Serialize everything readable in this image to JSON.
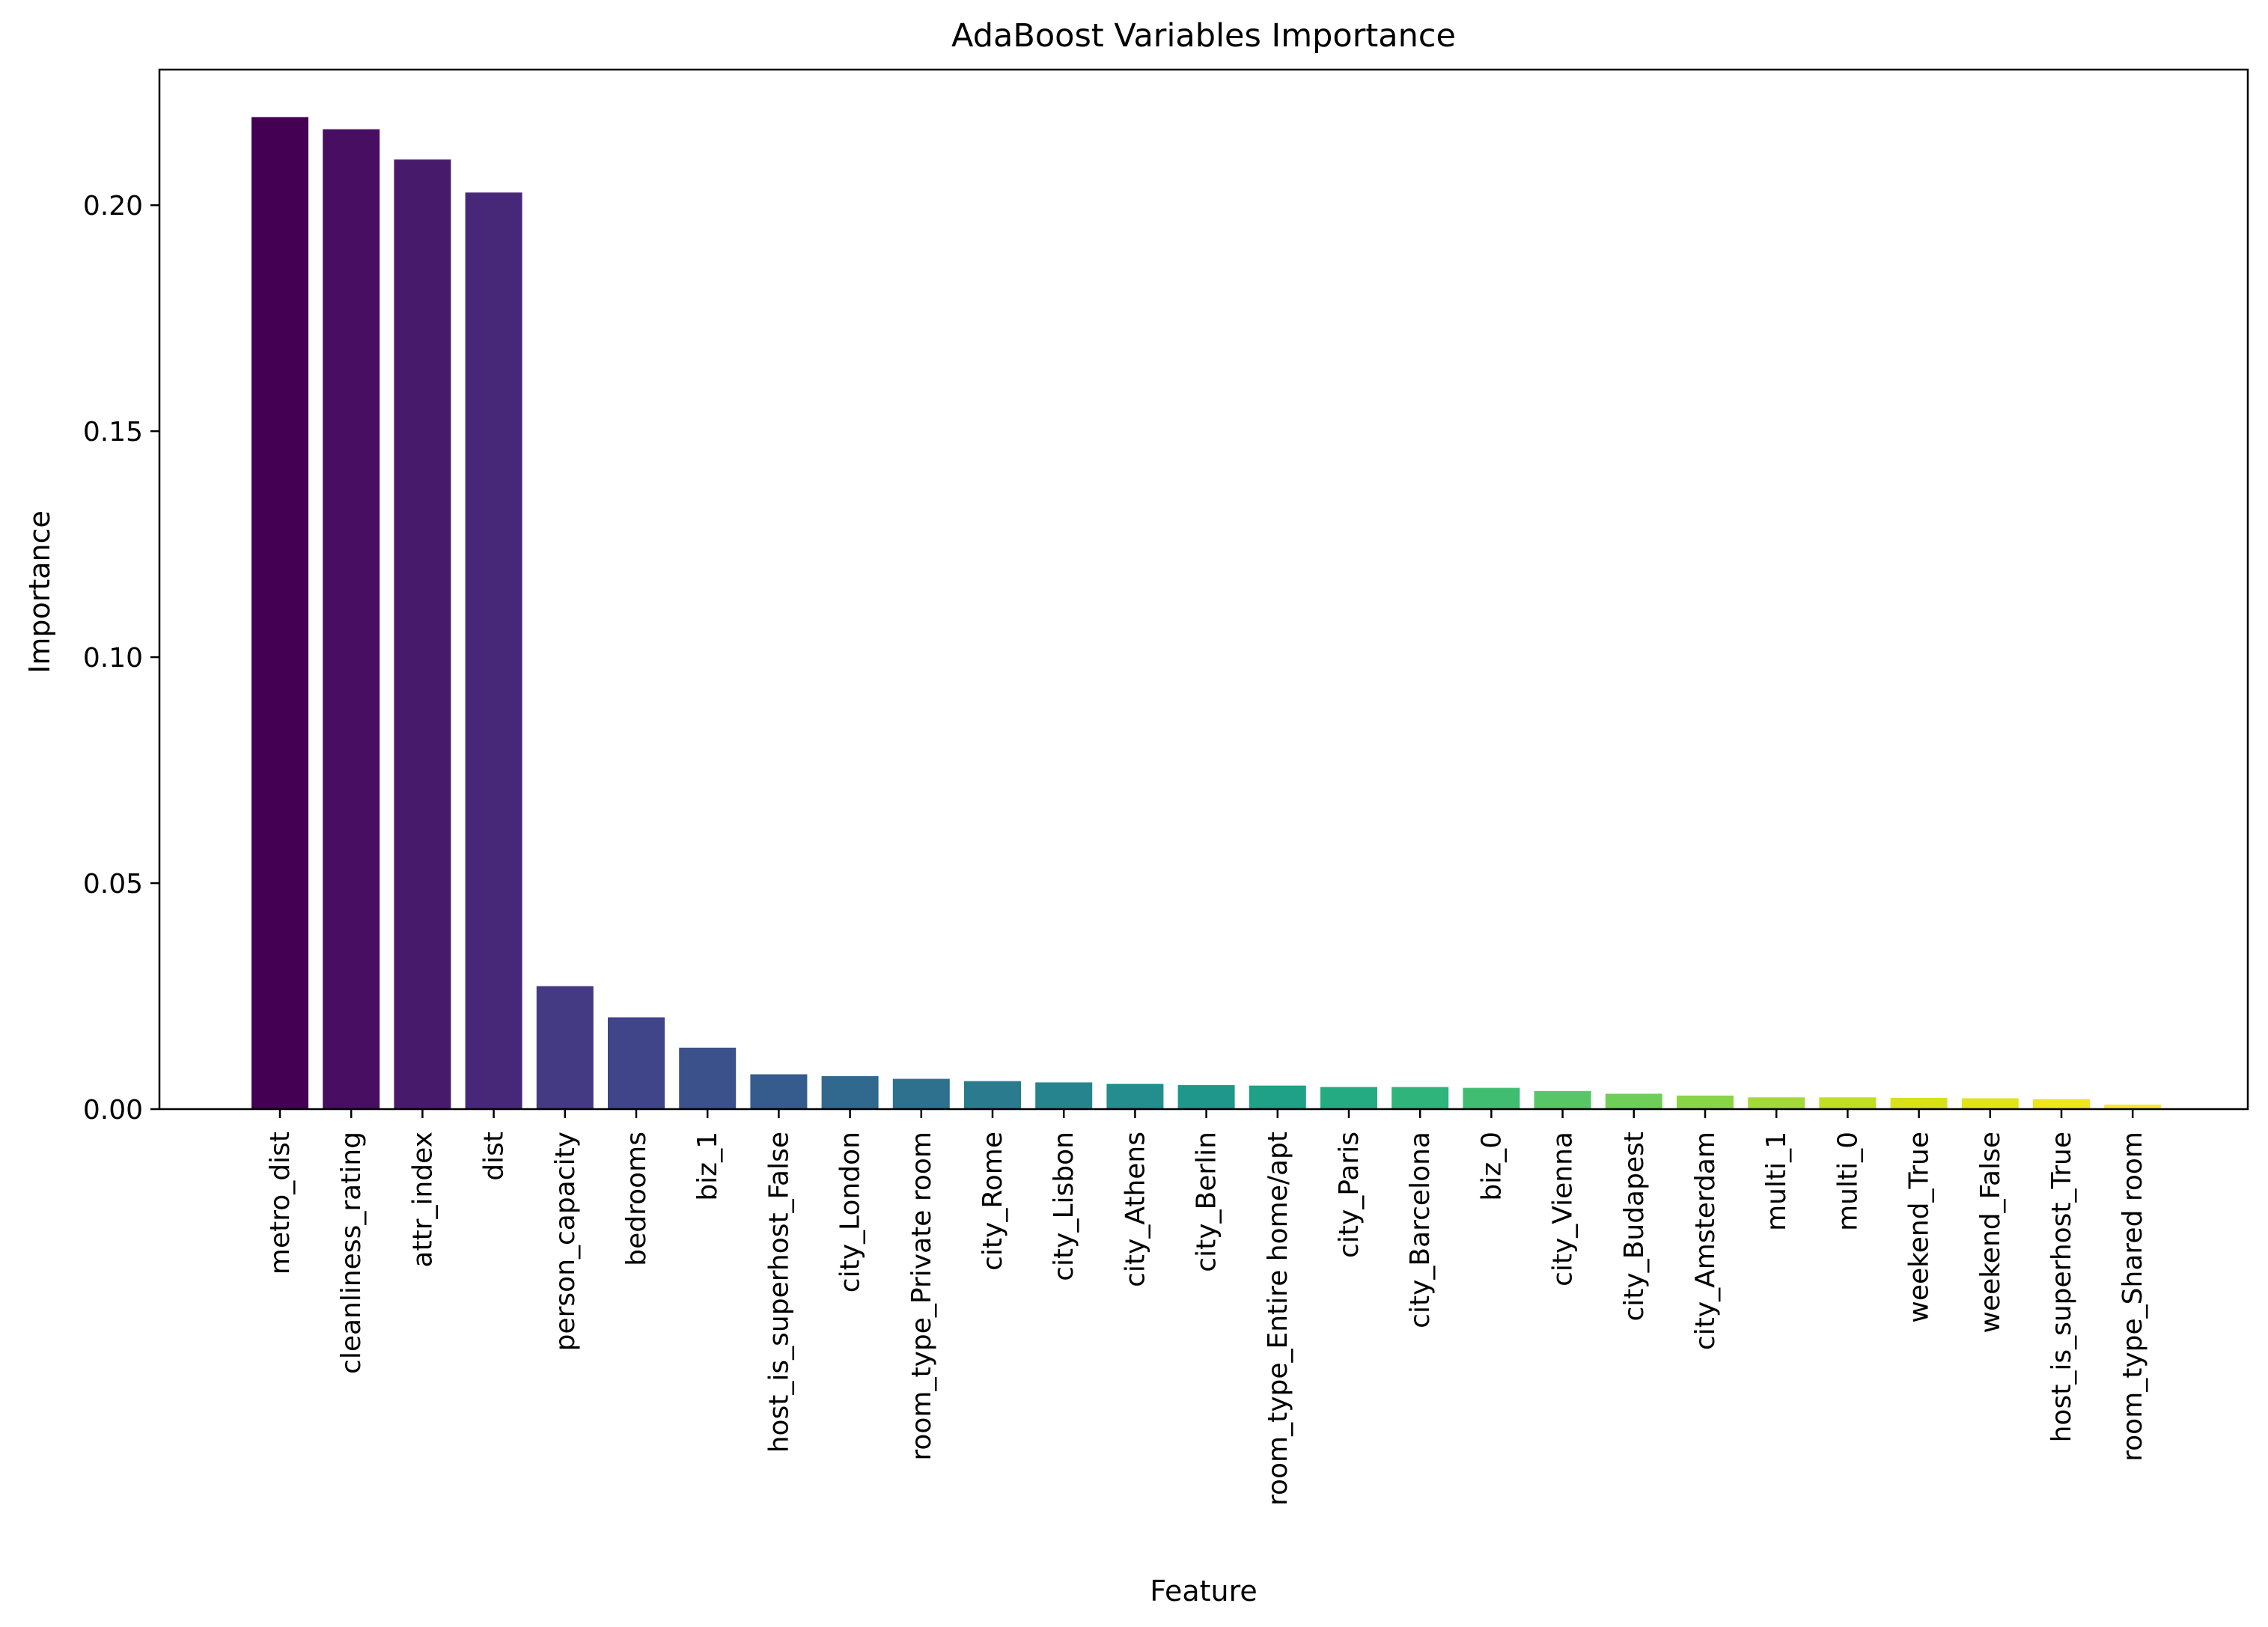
{
  "chart_data": {
    "type": "bar",
    "title": "AdaBoost Variables Importance",
    "xlabel": "Feature",
    "ylabel": "Importance",
    "ylim": [
      0,
      0.23
    ],
    "yticks": [
      "0.00",
      "0.05",
      "0.10",
      "0.15",
      "0.20"
    ],
    "grid": false,
    "legend": "none",
    "colormap": "viridis",
    "categories": [
      "metro_dist",
      "cleanliness_rating",
      "attr_index",
      "dist",
      "person_capacity",
      "bedrooms",
      "biz_1",
      "host_is_superhost_False",
      "city_London",
      "room_type_Private room",
      "city_Rome",
      "city_Lisbon",
      "city_Athens",
      "city_Berlin",
      "room_type_Entire home/apt",
      "city_Paris",
      "city_Barcelona",
      "biz_0",
      "city_Vienna",
      "city_Budapest",
      "city_Amsterdam",
      "multi_1",
      "multi_0",
      "weekend_True",
      "weekend_False",
      "host_is_superhost_True",
      "room_type_Shared room"
    ],
    "values": [
      0.2195,
      0.2168,
      0.2101,
      0.2028,
      0.0272,
      0.0203,
      0.0136,
      0.0077,
      0.0073,
      0.0067,
      0.0062,
      0.0059,
      0.0056,
      0.0053,
      0.0052,
      0.0049,
      0.0049,
      0.0047,
      0.004,
      0.0034,
      0.003,
      0.0026,
      0.0026,
      0.0025,
      0.0024,
      0.0022,
      0.001
    ],
    "colors": [
      "#440154",
      "#470e61",
      "#481a6c",
      "#472878",
      "#443983",
      "#40458a",
      "#3b518b",
      "#365c8d",
      "#31688e",
      "#2d718e",
      "#2a7b8e",
      "#26848e",
      "#238e8d",
      "#20978b",
      "#1fa187",
      "#24ab81",
      "#2fb47c",
      "#41bd72",
      "#56c667",
      "#6ece58",
      "#89d548",
      "#a3da37",
      "#bfdf25",
      "#d8e219",
      "#e3e418",
      "#efe51c",
      "#fde725"
    ]
  }
}
